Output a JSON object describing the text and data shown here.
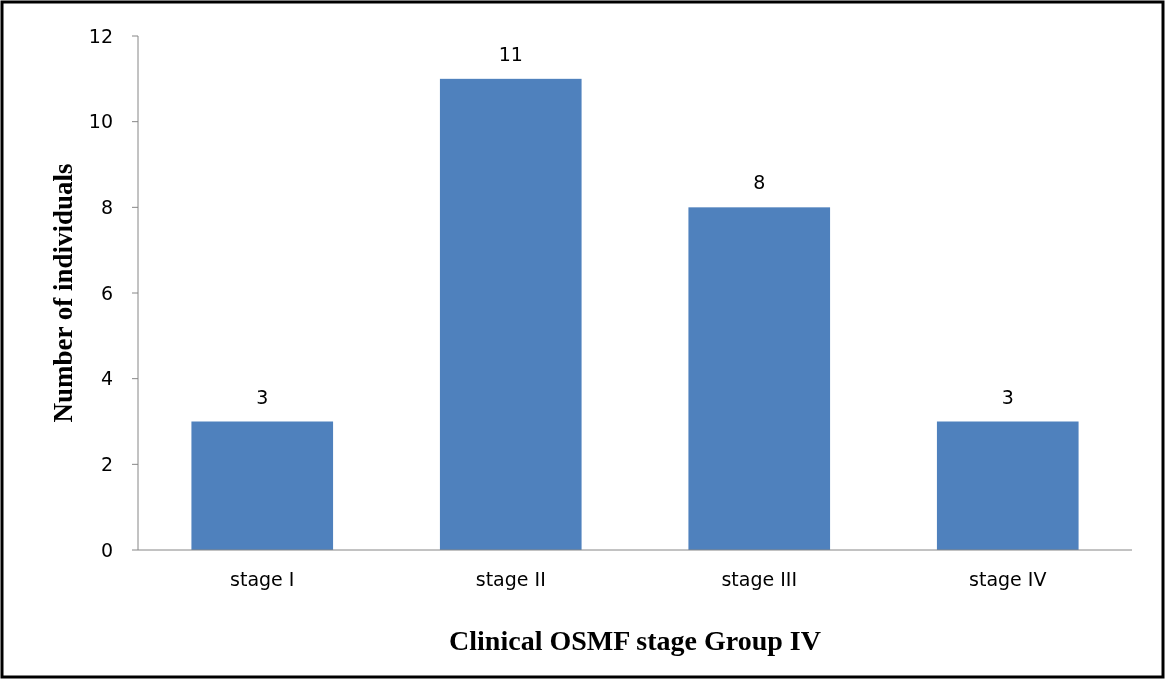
{
  "chart_data": {
    "type": "bar",
    "xlabel": "Clinical OSMF stage Group IV",
    "ylabel": "Number of individuals",
    "categories": [
      "stage I",
      "stage II",
      "stage III",
      "stage IV"
    ],
    "values": [
      3,
      11,
      8,
      3
    ],
    "color": "#4f81bd",
    "ylim": [
      0,
      12
    ],
    "yticks": [
      0,
      2,
      4,
      6,
      8,
      10,
      12
    ],
    "grid": false,
    "data_labels": true
  }
}
